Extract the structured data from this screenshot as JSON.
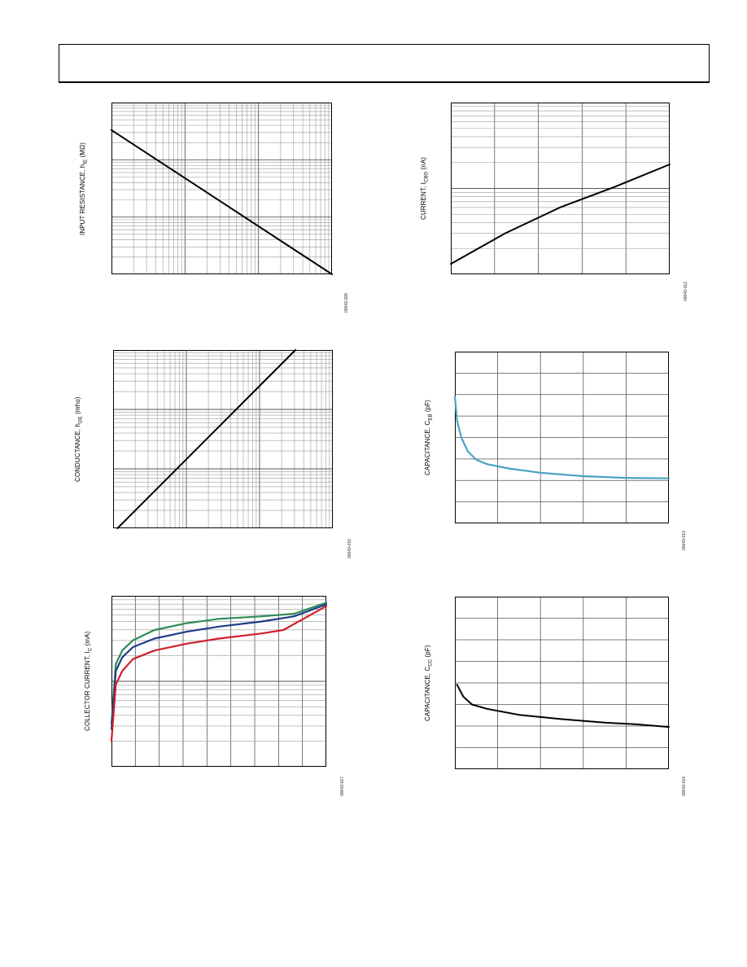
{
  "header": {
    "title": ""
  },
  "colors": {
    "axis": "#000000",
    "grid": "#9a9a9a",
    "black": "#000000",
    "teal": "#4aa3c2",
    "navy": "#1f3c88",
    "green": "#2e8b57",
    "red": "#d0202a"
  },
  "charts": [
    {
      "id": "input-resistance",
      "ylabel_main": "INPUT RESISTANCE, h",
      "ylabel_sub": "IE",
      "ylabel_unit": " (MΩ)",
      "fig_id": "00043-009"
    },
    {
      "id": "current-icbo",
      "ylabel_main": "CURRENT, I",
      "ylabel_sub": "CBO",
      "ylabel_unit": " (nA)",
      "fig_id": "00043-012"
    },
    {
      "id": "conductance",
      "ylabel_main": "CONDUCTANCE, h",
      "ylabel_sub": "OE",
      "ylabel_unit": " (mho)",
      "fig_id": "00043-010"
    },
    {
      "id": "capacitance-ceb",
      "ylabel_main": "CAPACITANCE, C",
      "ylabel_sub": "EB",
      "ylabel_unit": " (pF)",
      "fig_id": "00043-013"
    },
    {
      "id": "collector-current",
      "ylabel_main": "COLLECTOR CURRENT, I",
      "ylabel_sub": "C",
      "ylabel_unit": " (mA)",
      "fig_id": "00043-017"
    },
    {
      "id": "capacitance-ccc",
      "ylabel_main": "CAPACITANCE, C",
      "ylabel_sub": "CC",
      "ylabel_unit": " (pF)",
      "fig_id": "00043-014"
    }
  ],
  "chart_data": [
    {
      "type": "line",
      "xscale": "log",
      "yscale": "log",
      "x_decades": 3,
      "y_decades": 3,
      "grid": true,
      "title": "",
      "xlabel": "",
      "ylabel": "INPUT RESISTANCE, hIE (MΩ)",
      "series": [
        {
          "color": "black",
          "points": [
            [
              0,
              0.84
            ],
            [
              1,
              0.0
            ]
          ]
        }
      ]
    },
    {
      "type": "line",
      "xscale": "linear",
      "yscale": "log",
      "x_divisions": 5,
      "y_decades": 2,
      "grid": true,
      "title": "",
      "xlabel": "",
      "ylabel": "CURRENT, ICBO (nA)",
      "series": [
        {
          "color": "black",
          "points": [
            [
              0,
              0.06
            ],
            [
              0.25,
              0.24
            ],
            [
              0.5,
              0.39
            ],
            [
              0.75,
              0.51
            ],
            [
              1,
              0.64
            ]
          ]
        }
      ]
    },
    {
      "type": "line",
      "xscale": "log",
      "yscale": "log",
      "x_decades": 3,
      "y_decades": 3,
      "grid": true,
      "title": "",
      "xlabel": "",
      "ylabel": "CONDUCTANCE, hOE (mho)",
      "series": [
        {
          "color": "black",
          "points": [
            [
              0.02,
              0.0
            ],
            [
              0.83,
              1.0
            ]
          ]
        }
      ]
    },
    {
      "type": "line",
      "xscale": "linear",
      "yscale": "linear",
      "x_divisions": 5,
      "y_divisions": 8,
      "grid": true,
      "title": "",
      "xlabel": "",
      "ylabel": "CAPACITANCE, CEB (pF)",
      "series": [
        {
          "color": "teal",
          "points": [
            [
              0.0,
              0.74
            ],
            [
              0.01,
              0.6
            ],
            [
              0.03,
              0.5
            ],
            [
              0.06,
              0.42
            ],
            [
              0.1,
              0.37
            ],
            [
              0.15,
              0.345
            ],
            [
              0.25,
              0.32
            ],
            [
              0.4,
              0.295
            ],
            [
              0.6,
              0.275
            ],
            [
              0.8,
              0.265
            ],
            [
              1.0,
              0.262
            ]
          ]
        }
      ]
    },
    {
      "type": "line",
      "xscale": "linear",
      "yscale": "log",
      "x_divisions": 9,
      "y_decades": 2,
      "grid": true,
      "title": "",
      "xlabel": "",
      "ylabel": "COLLECTOR CURRENT, IC (mA)",
      "series": [
        {
          "color": "green",
          "points": [
            [
              0.0,
              0.25
            ],
            [
              0.02,
              0.6
            ],
            [
              0.05,
              0.68
            ],
            [
              0.1,
              0.74
            ],
            [
              0.2,
              0.8
            ],
            [
              0.35,
              0.84
            ],
            [
              0.5,
              0.865
            ],
            [
              0.7,
              0.88
            ],
            [
              0.85,
              0.895
            ],
            [
              1.0,
              0.96
            ]
          ]
        },
        {
          "color": "navy",
          "points": [
            [
              0.0,
              0.22
            ],
            [
              0.02,
              0.56
            ],
            [
              0.05,
              0.64
            ],
            [
              0.1,
              0.7
            ],
            [
              0.2,
              0.75
            ],
            [
              0.35,
              0.79
            ],
            [
              0.5,
              0.82
            ],
            [
              0.7,
              0.85
            ],
            [
              0.85,
              0.88
            ],
            [
              1.0,
              0.95
            ]
          ]
        },
        {
          "color": "red",
          "points": [
            [
              0.0,
              0.15
            ],
            [
              0.02,
              0.48
            ],
            [
              0.05,
              0.56
            ],
            [
              0.1,
              0.63
            ],
            [
              0.2,
              0.68
            ],
            [
              0.35,
              0.72
            ],
            [
              0.5,
              0.75
            ],
            [
              0.7,
              0.78
            ],
            [
              0.8,
              0.8
            ],
            [
              0.9,
              0.87
            ],
            [
              1.0,
              0.94
            ]
          ]
        }
      ]
    },
    {
      "type": "line",
      "xscale": "linear",
      "yscale": "linear",
      "x_divisions": 5,
      "y_divisions": 8,
      "grid": true,
      "title": "",
      "xlabel": "",
      "ylabel": "CAPACITANCE, CCC (pF)",
      "series": [
        {
          "color": "black",
          "points": [
            [
              0.01,
              0.49
            ],
            [
              0.04,
              0.42
            ],
            [
              0.08,
              0.375
            ],
            [
              0.15,
              0.35
            ],
            [
              0.3,
              0.315
            ],
            [
              0.5,
              0.29
            ],
            [
              0.7,
              0.27
            ],
            [
              0.85,
              0.26
            ],
            [
              1.0,
              0.245
            ]
          ]
        }
      ]
    }
  ]
}
